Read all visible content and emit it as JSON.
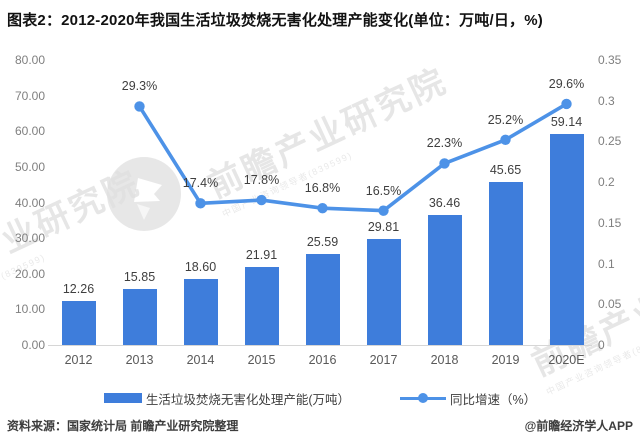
{
  "title": "图表2：2012-2020年我国生活垃圾焚烧无害化处理产能变化(单位：万吨/日，%)",
  "chart_data": {
    "type": "bar+line combo",
    "categories": [
      "2012",
      "2013",
      "2014",
      "2015",
      "2016",
      "2017",
      "2018",
      "2019",
      "2020E"
    ],
    "series": [
      {
        "name": "生活垃圾焚烧无害化处理产能(万吨）",
        "type": "bar",
        "axis": "left",
        "color": "#3E7DDB",
        "values": [
          12.26,
          15.85,
          18.6,
          21.91,
          25.59,
          29.81,
          36.46,
          45.65,
          59.14
        ],
        "labels": [
          "12.26",
          "15.85",
          "18.60",
          "21.91",
          "25.59",
          "29.81",
          "36.46",
          "45.65",
          "59.14"
        ]
      },
      {
        "name": "同比增速（%）",
        "type": "line",
        "axis": "right",
        "color": "#4D92E7",
        "values_percent": [
          null,
          29.3,
          17.4,
          17.8,
          16.8,
          16.5,
          22.3,
          25.2,
          29.6
        ],
        "labels": [
          null,
          "29.3%",
          "17.4%",
          "17.8%",
          "16.8%",
          "16.5%",
          "22.3%",
          "25.2%",
          "29.6%"
        ]
      }
    ],
    "left_axis": {
      "min": 0,
      "max": 80,
      "step": 10,
      "tick_labels": [
        "80.00",
        "70.00",
        "60.00",
        "50.00",
        "40.00",
        "30.00",
        "20.00",
        "10.00",
        "0.00"
      ]
    },
    "right_axis": {
      "min": 0,
      "max": 0.35,
      "step": 0.05,
      "tick_labels": [
        "0.35",
        "0.3",
        "0.25",
        "0.2",
        "0.15",
        "0.1",
        "0.05",
        "0"
      ]
    },
    "grid": false,
    "legend_position": "bottom"
  },
  "legend": {
    "bar_label": "生活垃圾焚烧无害化处理产能(万吨）",
    "line_label": "同比增速（%）"
  },
  "footer": {
    "source": "资料来源：国家统计局 前瞻产业研究院整理",
    "credit": "@前瞻经济学人APP"
  },
  "watermark": {
    "text": "前瞻产业研究院",
    "small_text": "中国产业咨询领导者(839599)"
  },
  "colors": {
    "bar": "#3E7DDB",
    "line": "#4D92E7",
    "axis_text": "#7f7f7f",
    "axis_line": "#d6d6d6",
    "watermark": "#e0e0e0"
  }
}
